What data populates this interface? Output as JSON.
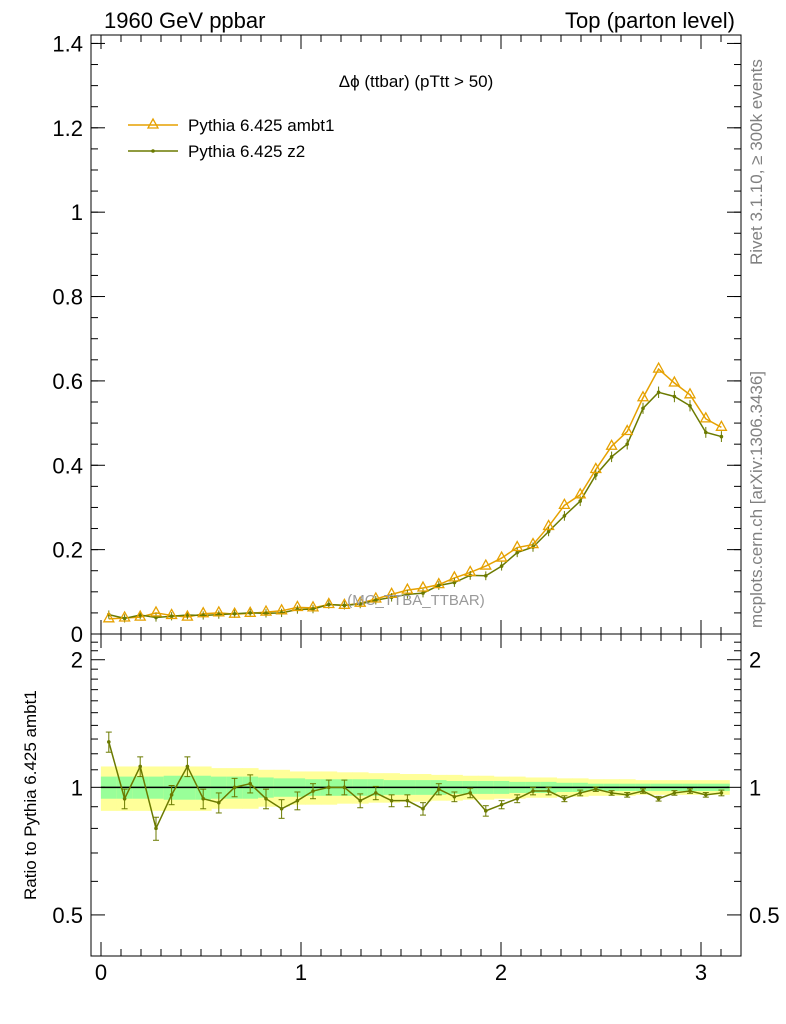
{
  "header": {
    "left_title": "1960 GeV ppbar",
    "right_title": "Top (parton level)"
  },
  "side_labels": {
    "rivet": "Rivet 3.1.10, ≥ 300k events",
    "mcplots": "mcplots.cern.ch [arXiv:1306.3436]"
  },
  "watermark": "(MC_TTBA_TTBAR)",
  "chart_data": [
    {
      "type": "line",
      "title": "Δϕ (ttbar) (pTtt > 50)",
      "xlim": [
        -0.05,
        3.2
      ],
      "ylim": [
        0,
        1.42
      ],
      "yticks": [
        0,
        0.2,
        0.4,
        0.6,
        0.8,
        1,
        1.2,
        1.4
      ],
      "ytick_labels": [
        "0",
        "0.2",
        "0.4",
        "0.6",
        "0.8",
        "1",
        "1.2",
        "1.4"
      ],
      "legend_position": "top-left",
      "colors": {
        "ambt1": "#e6a100",
        "z2": "#6b7a00"
      },
      "x": [
        0.039,
        0.118,
        0.196,
        0.275,
        0.353,
        0.432,
        0.511,
        0.589,
        0.668,
        0.746,
        0.825,
        0.903,
        0.982,
        1.06,
        1.139,
        1.217,
        1.296,
        1.374,
        1.453,
        1.532,
        1.61,
        1.689,
        1.767,
        1.846,
        1.924,
        2.003,
        2.081,
        2.16,
        2.238,
        2.317,
        2.396,
        2.474,
        2.553,
        2.631,
        2.71,
        2.788,
        2.867,
        2.945,
        3.024,
        3.102
      ],
      "series": [
        {
          "name": "Pythia 6.425 ambt1",
          "marker": "triangle",
          "values": [
            0.036,
            0.038,
            0.04,
            0.05,
            0.044,
            0.04,
            0.048,
            0.05,
            0.047,
            0.049,
            0.052,
            0.055,
            0.063,
            0.062,
            0.07,
            0.068,
            0.073,
            0.083,
            0.094,
            0.104,
            0.109,
            0.117,
            0.133,
            0.146,
            0.161,
            0.18,
            0.205,
            0.212,
            0.255,
            0.305,
            0.33,
            0.39,
            0.445,
            0.48,
            0.56,
            0.628,
            0.595,
            0.567,
            0.51,
            0.49
          ]
        },
        {
          "name": "Pythia 6.425 z2",
          "marker": "dot",
          "values": [
            0.046,
            0.037,
            0.045,
            0.039,
            0.042,
            0.045,
            0.044,
            0.046,
            0.048,
            0.05,
            0.049,
            0.05,
            0.058,
            0.059,
            0.07,
            0.068,
            0.071,
            0.08,
            0.087,
            0.094,
            0.097,
            0.115,
            0.122,
            0.139,
            0.138,
            0.161,
            0.193,
            0.206,
            0.243,
            0.28,
            0.315,
            0.377,
            0.42,
            0.45,
            0.535,
            0.573,
            0.563,
            0.541,
            0.478,
            0.468
          ]
        }
      ]
    },
    {
      "type": "line",
      "ylabel": "Ratio to Pythia 6.425 ambt1",
      "xlim": [
        -0.05,
        3.2
      ],
      "ylim": [
        0.4,
        2.3
      ],
      "log_y": true,
      "yticks": [
        0.5,
        1,
        2
      ],
      "ytick_labels": [
        "0.5",
        "1",
        "2"
      ],
      "xticks": [
        0,
        1,
        2,
        3
      ],
      "xtick_labels": [
        "0",
        "1",
        "2",
        "3"
      ],
      "colors": {
        "reference": "#000000",
        "band_outer": "#ffff99",
        "band_inner": "#99ff99",
        "z2": "#6b7a00"
      },
      "reference_value": 1,
      "band_inner_halfwidth": [
        0.06,
        0.06,
        0.06,
        0.06,
        0.065,
        0.065,
        0.065,
        0.06,
        0.06,
        0.06,
        0.055,
        0.05,
        0.05,
        0.045,
        0.045,
        0.045,
        0.045,
        0.045,
        0.04,
        0.04,
        0.04,
        0.04,
        0.035,
        0.035,
        0.035,
        0.035,
        0.03,
        0.03,
        0.03,
        0.025,
        0.025,
        0.02,
        0.02,
        0.02,
        0.02,
        0.02,
        0.02,
        0.02,
        0.02,
        0.02
      ],
      "band_outer_halfwidth": [
        0.12,
        0.12,
        0.12,
        0.12,
        0.12,
        0.12,
        0.12,
        0.11,
        0.11,
        0.11,
        0.1,
        0.1,
        0.09,
        0.09,
        0.09,
        0.085,
        0.085,
        0.08,
        0.08,
        0.075,
        0.075,
        0.07,
        0.07,
        0.065,
        0.065,
        0.06,
        0.06,
        0.055,
        0.055,
        0.05,
        0.05,
        0.045,
        0.045,
        0.045,
        0.04,
        0.04,
        0.04,
        0.04,
        0.04,
        0.04
      ],
      "series": [
        {
          "name": "Pythia 6.425 z2",
          "values": [
            1.28,
            0.94,
            1.12,
            0.8,
            0.96,
            1.12,
            0.94,
            0.92,
            1.0,
            1.02,
            0.94,
            0.89,
            0.93,
            0.98,
            1.0,
            1.0,
            0.93,
            0.97,
            0.93,
            0.93,
            0.89,
            0.99,
            0.95,
            0.97,
            0.88,
            0.91,
            0.94,
            0.98,
            0.98,
            0.94,
            0.97,
            0.99,
            0.97,
            0.96,
            0.98,
            0.94,
            0.97,
            0.98,
            0.96,
            0.97
          ],
          "errors": [
            0.07,
            0.05,
            0.06,
            0.05,
            0.05,
            0.06,
            0.05,
            0.05,
            0.05,
            0.05,
            0.05,
            0.045,
            0.045,
            0.04,
            0.04,
            0.04,
            0.035,
            0.035,
            0.03,
            0.03,
            0.03,
            0.03,
            0.025,
            0.025,
            0.025,
            0.02,
            0.02,
            0.02,
            0.02,
            0.015,
            0.015,
            0.012,
            0.012,
            0.012,
            0.012,
            0.012,
            0.012,
            0.012,
            0.012,
            0.015
          ]
        }
      ]
    }
  ]
}
